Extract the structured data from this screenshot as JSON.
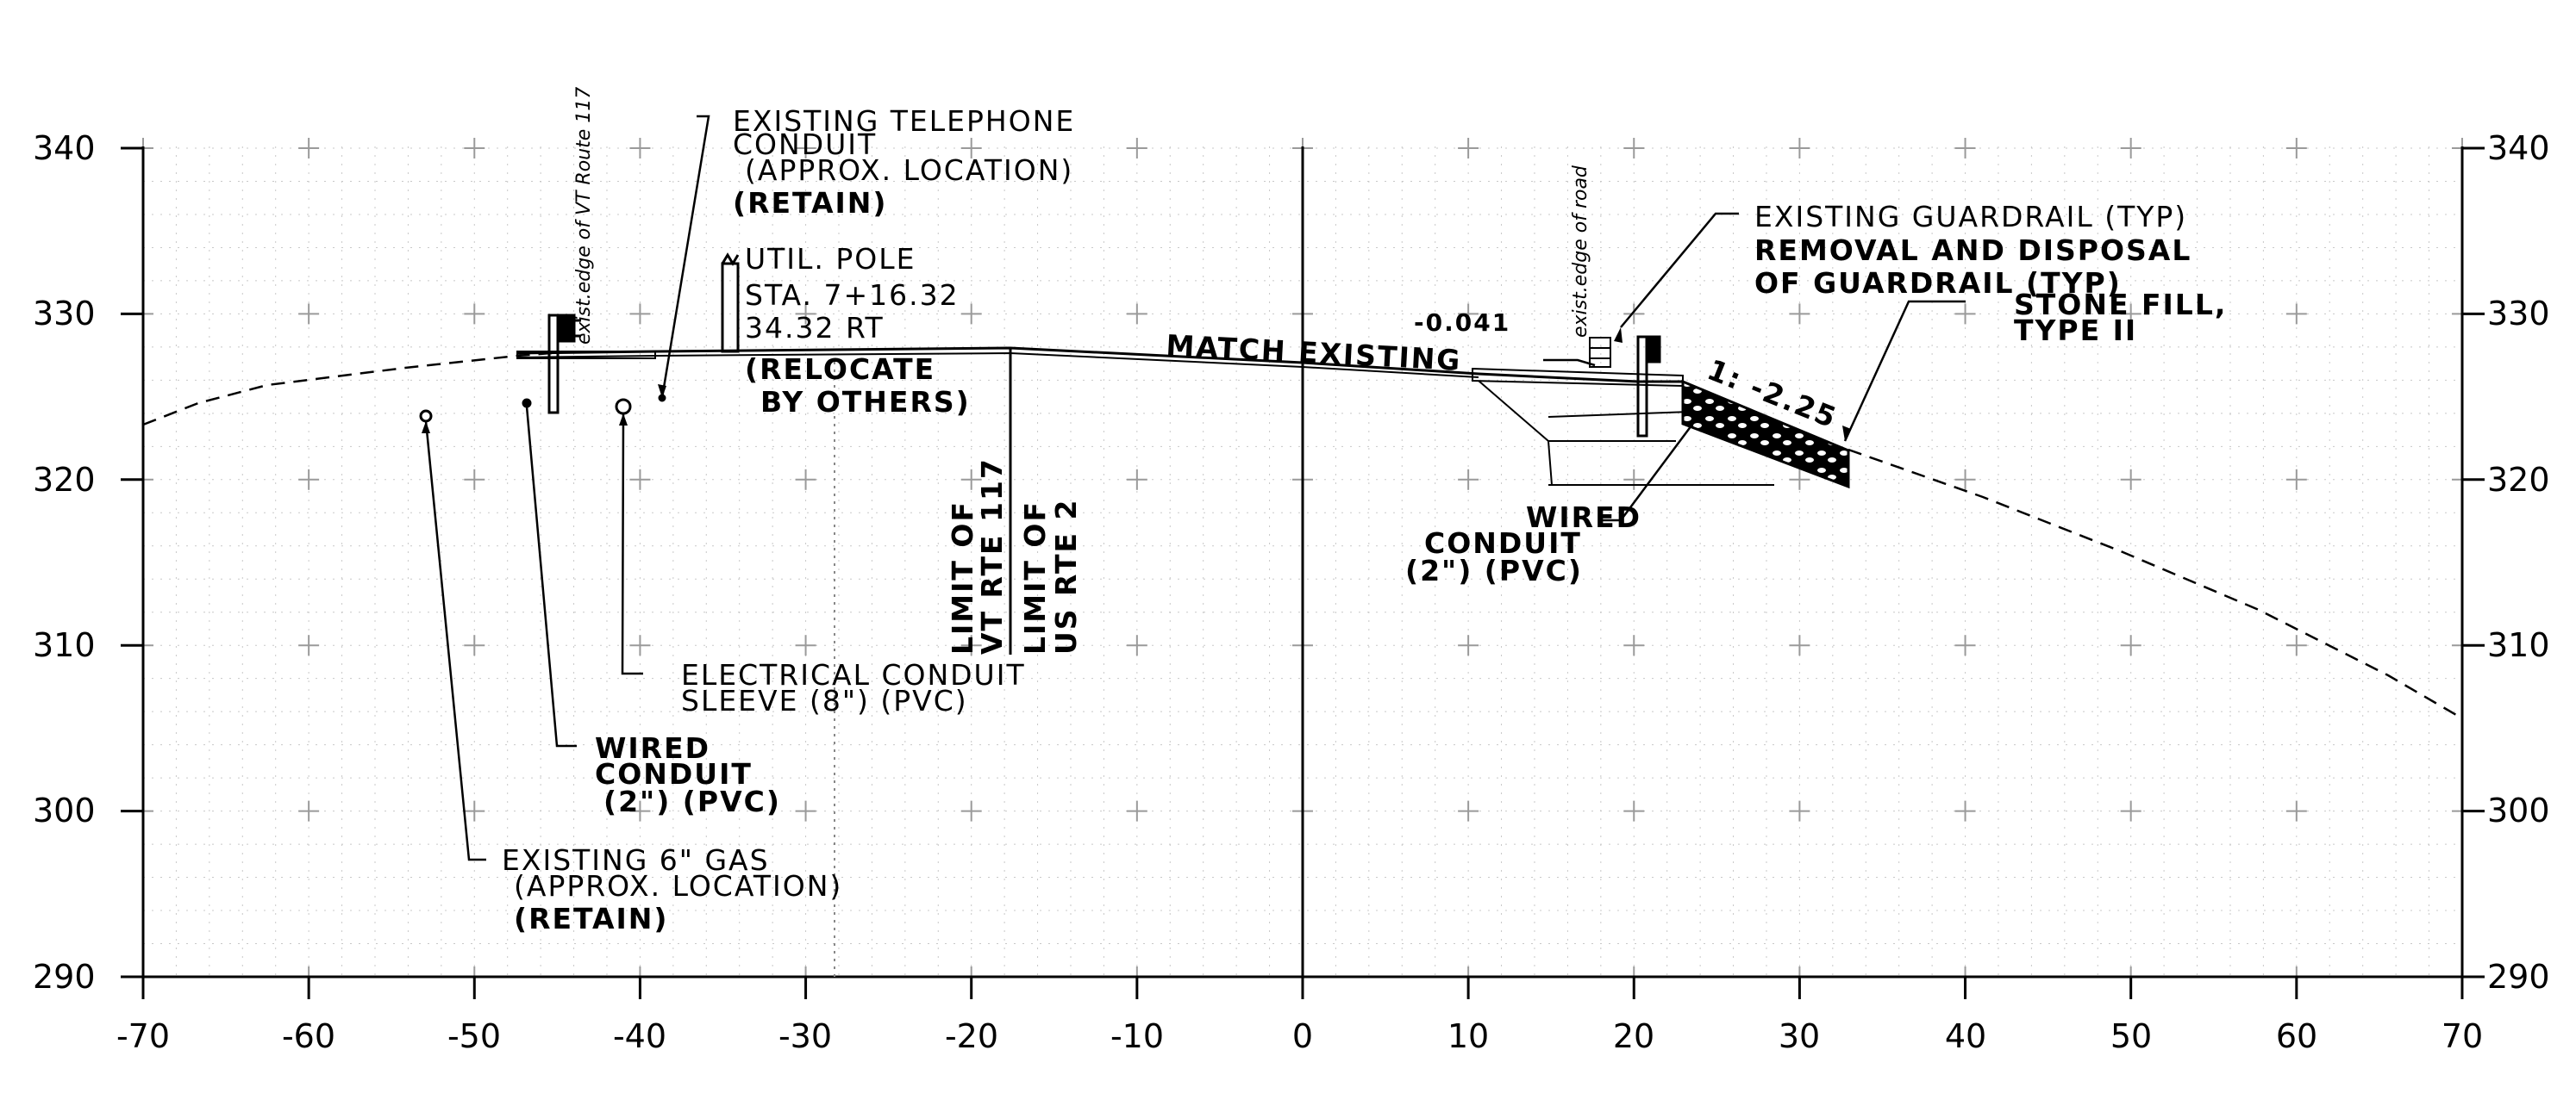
{
  "section": {
    "x_ticks": [
      "-70",
      "-60",
      "-50",
      "-40",
      "-30",
      "-20",
      "-10",
      "0",
      "10",
      "20",
      "30",
      "40",
      "50",
      "60",
      "70"
    ],
    "y_ticks": [
      "290",
      "300",
      "310",
      "320",
      "330",
      "340"
    ],
    "y_ticks_right": [
      "290",
      "300",
      "310",
      "320",
      "330",
      "340"
    ],
    "match_existing": "MATCH EXISTING",
    "slope_left": "-0.041",
    "slope_right": "1: -2.25",
    "vertical_notes": {
      "vt_route": "exist.edge of VT Route 117",
      "road_edge": "exist.edge of road",
      "limit_vt_1": "LIMIT OF",
      "limit_vt_2": "VT RTE 117",
      "limit_us_1": "LIMIT OF",
      "limit_us_2": "US RTE 2"
    },
    "callouts": {
      "telephone": [
        "EXISTING TELEPHONE",
        "CONDUIT",
        "(APPROX. LOCATION)",
        "(RETAIN)"
      ],
      "pole": [
        "UTIL. POLE",
        "STA. 7+16.32",
        "34.32 RT",
        "(RELOCATE",
        "BY OTHERS)"
      ],
      "electrical": [
        "ELECTRICAL CONDUIT",
        "SLEEVE (8\") (PVC)"
      ],
      "wired_left": [
        "WIRED",
        "CONDUIT",
        "(2\") (PVC)"
      ],
      "gas": [
        "EXISTING 6\" GAS",
        "(APPROX. LOCATION)",
        "(RETAIN)"
      ],
      "guardrail": [
        "EXISTING GUARDRAIL (TYP)",
        "REMOVAL AND DISPOSAL",
        "OF GUARDRAIL (TYP)"
      ],
      "stone": [
        "STONE FILL,",
        "TYPE II"
      ],
      "wired_right": [
        "WIRED",
        "CONDUIT",
        "(2\") (PVC)"
      ]
    }
  }
}
